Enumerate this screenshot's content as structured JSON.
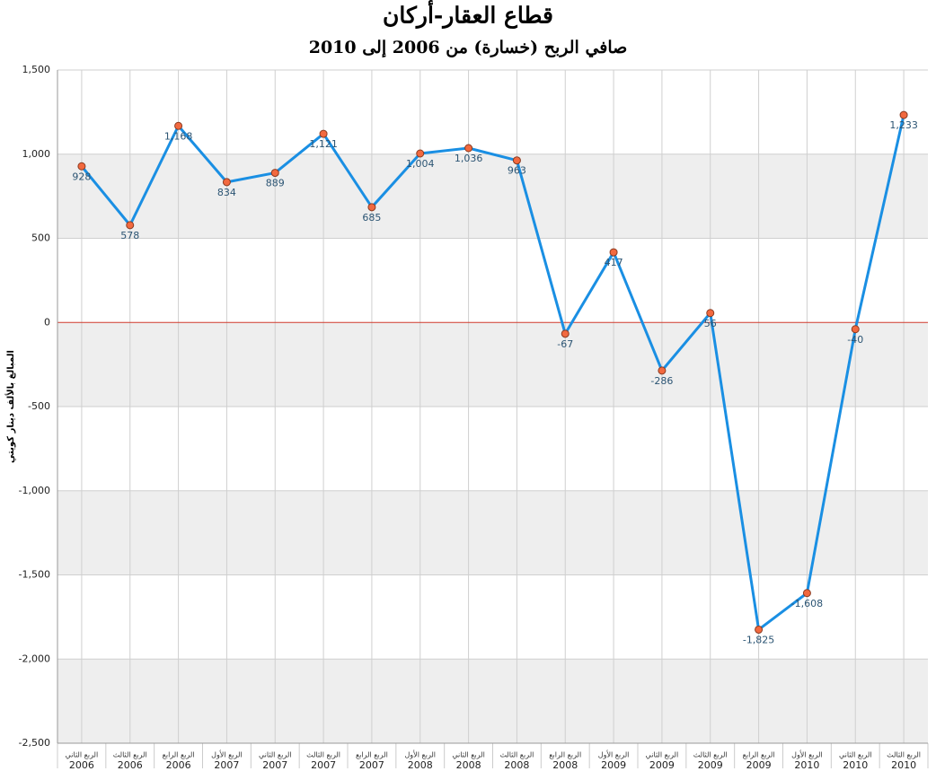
{
  "chart_data": {
    "type": "line",
    "title": "قطاع العقار-أركان",
    "subtitle": "صافي الربح (خسارة) من 2006 إلى 2010",
    "y_label": "المبالغ بالألف دينار كويتي",
    "categories": [
      [
        "الربع الثاني",
        "2006"
      ],
      [
        "الربع الثالث",
        "2006"
      ],
      [
        "الربع الرابع",
        "2006"
      ],
      [
        "الربع الأول",
        "2007"
      ],
      [
        "الربع الثاني",
        "2007"
      ],
      [
        "الربع الثالث",
        "2007"
      ],
      [
        "الربع الرابع",
        "2007"
      ],
      [
        "الربع الأول",
        "2008"
      ],
      [
        "الربع الثاني",
        "2008"
      ],
      [
        "الربع الثالث",
        "2008"
      ],
      [
        "الربع الرابع",
        "2008"
      ],
      [
        "الربع الأول",
        "2009"
      ],
      [
        "الربع الثاني",
        "2009"
      ],
      [
        "الربع الثالث",
        "2009"
      ],
      [
        "الربع الرابع",
        "2009"
      ],
      [
        "الربع الأول",
        "2010"
      ],
      [
        "الربع الثاني",
        "2010"
      ],
      [
        "الربع الثالث",
        "2010"
      ]
    ],
    "series": [
      {
        "name": "صافي الربح",
        "color": "#1a8fe3",
        "marker_color": "#f2693f",
        "values": [
          928,
          578,
          1168,
          834,
          889,
          1121,
          685,
          1004,
          1036,
          963,
          -67,
          417,
          -286,
          56,
          -1825,
          -1608,
          -40,
          1233
        ],
        "value_labels": [
          "928",
          "578",
          "1,168",
          "834",
          "889",
          "1,121",
          "685",
          "1,004",
          "1,036",
          "963",
          "-67",
          "417",
          "-286",
          "56",
          "-1,825",
          "-1,608",
          "-40",
          "1,233"
        ]
      }
    ],
    "ylim": [
      -2500,
      1500
    ],
    "yticks": [
      {
        "value": -2500,
        "label": "-2,500"
      },
      {
        "value": -2000,
        "label": "-2,000"
      },
      {
        "value": -1500,
        "label": "-1,500"
      },
      {
        "value": -1000,
        "label": "-1,000"
      },
      -500,
      0,
      500,
      {
        "value": 1000,
        "label": "1,000"
      },
      {
        "value": 1500,
        "label": "1,500"
      }
    ],
    "grid": true,
    "zero_line_color": "#d0392b"
  }
}
